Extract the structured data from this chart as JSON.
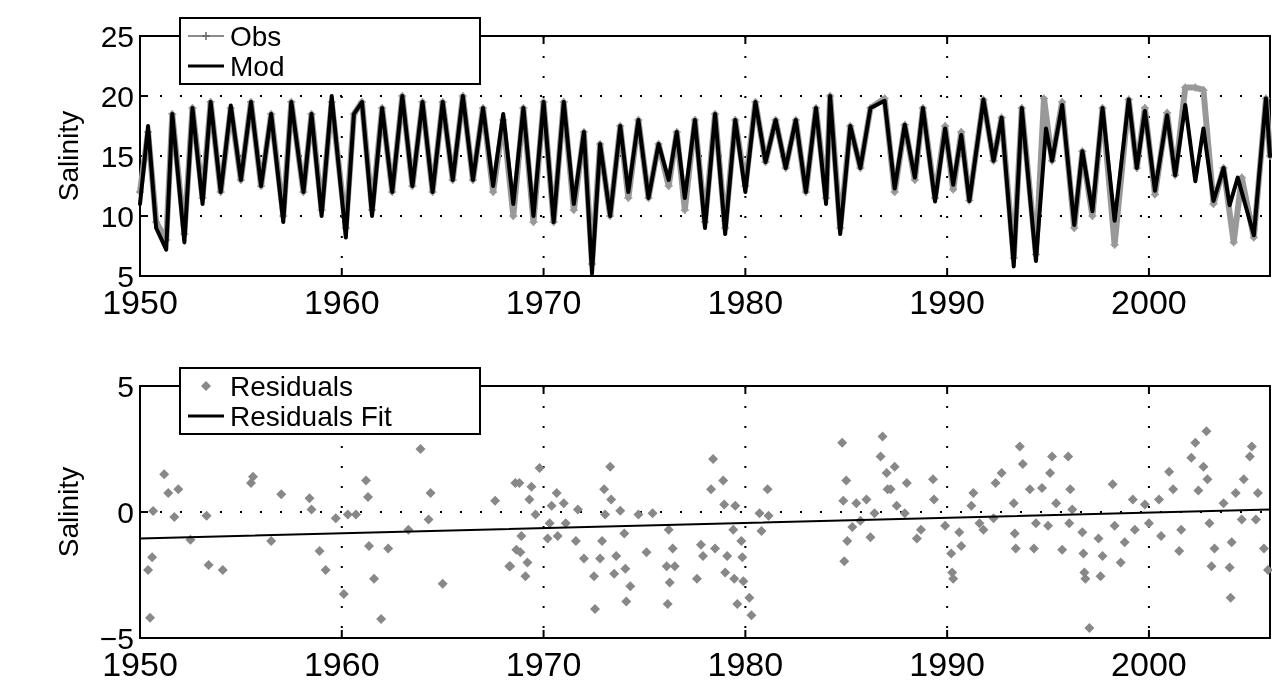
{
  "chart_data": [
    {
      "type": "line",
      "ylabel": "Salinity",
      "xlim": [
        1950,
        2006
      ],
      "xticks": [
        1950,
        1960,
        1970,
        1980,
        1990,
        2000
      ],
      "ylim": [
        5,
        25
      ],
      "yticks": [
        5,
        10,
        15,
        20,
        25
      ],
      "grid": true,
      "legend": "top left",
      "series": [
        {
          "name": "Obs",
          "color": "#999999",
          "marker": "cross",
          "x": [
            1950.0,
            1950.4,
            1950.8,
            1951.3,
            1951.6,
            1952.2,
            1952.6,
            1953.1,
            1953.5,
            1954.0,
            1954.5,
            1955.0,
            1955.5,
            1956.0,
            1956.5,
            1957.1,
            1957.5,
            1958.1,
            1958.5,
            1959.0,
            1959.5,
            1960.2,
            1960.6,
            1961.0,
            1961.5,
            1962.0,
            1962.5,
            1963.0,
            1963.5,
            1964.0,
            1964.5,
            1965.0,
            1965.5,
            1966.0,
            1966.5,
            1967.0,
            1967.5,
            1968.0,
            1968.5,
            1969.0,
            1969.5,
            1970.0,
            1970.5,
            1971.0,
            1971.5,
            1972.0,
            1972.4,
            1972.8,
            1973.3,
            1973.8,
            1974.2,
            1974.7,
            1975.2,
            1975.7,
            1976.2,
            1976.6,
            1977.0,
            1977.5,
            1978.0,
            1978.5,
            1979.0,
            1979.5,
            1980.0,
            1980.5,
            1981.0,
            1981.5,
            1982.0,
            1982.5,
            1983.0,
            1983.5,
            1984.0,
            1984.2,
            1984.7,
            1985.2,
            1985.7,
            1986.2,
            1986.9,
            1987.4,
            1987.9,
            1988.4,
            1988.8,
            1989.4,
            1989.9,
            1990.3,
            1990.7,
            1991.1,
            1991.8,
            1992.3,
            1992.7,
            1993.3,
            1993.7,
            1994.4,
            1994.8,
            1995.2,
            1995.7,
            1996.3,
            1996.7,
            1997.2,
            1997.7,
            1998.3,
            1999.0,
            1999.4,
            1999.8,
            2000.3,
            2000.9,
            2001.3,
            2001.8,
            2002.3,
            2002.7,
            2003.2,
            2003.7,
            2004.2,
            2004.6,
            2005.2,
            2005.8,
            2006.0
          ],
          "values": [
            12,
            17,
            9.5,
            8,
            18.5,
            8.5,
            19,
            11.5,
            19.5,
            12,
            19,
            13,
            19.5,
            12.5,
            18.5,
            10,
            19.5,
            12,
            18.5,
            10.5,
            19.5,
            9,
            18.5,
            19.5,
            10.5,
            19,
            12,
            20,
            12.5,
            19.5,
            12,
            19.5,
            13,
            20,
            13,
            19,
            12,
            18,
            10,
            19,
            9.5,
            19.5,
            9.5,
            19.5,
            10.5,
            17,
            6,
            16,
            10,
            17.5,
            11.5,
            18,
            11.5,
            16,
            12.5,
            17,
            10.5,
            18,
            9.5,
            18.5,
            9,
            18,
            12.5,
            19.5,
            14.5,
            18,
            14,
            18,
            12,
            19,
            11.5,
            20,
            9,
            17.5,
            14,
            19,
            19.8,
            12,
            17.6,
            13,
            19,
            11.5,
            17.5,
            12.2,
            17,
            11.3,
            19.7,
            14.6,
            18.2,
            6.5,
            19,
            6.8,
            19.8,
            14.6,
            19.5,
            9,
            15.4,
            10,
            19,
            7.6,
            19.7,
            14,
            19,
            11.8,
            18.6,
            13.4,
            20.7,
            20.7,
            20.5,
            11,
            14,
            7.8,
            13.2,
            8.2,
            19.8,
            15
          ]
        },
        {
          "name": "Mod",
          "color": "#000000",
          "x": [
            1950.0,
            1950.4,
            1950.8,
            1951.3,
            1951.6,
            1952.2,
            1952.6,
            1953.1,
            1953.5,
            1954.0,
            1954.5,
            1955.0,
            1955.5,
            1956.0,
            1956.5,
            1957.1,
            1957.5,
            1958.1,
            1958.5,
            1959.0,
            1959.5,
            1960.2,
            1960.6,
            1961.0,
            1961.5,
            1962.0,
            1962.5,
            1963.0,
            1963.5,
            1964.0,
            1964.5,
            1965.0,
            1965.5,
            1966.0,
            1966.5,
            1967.0,
            1967.5,
            1968.0,
            1968.5,
            1969.0,
            1969.5,
            1970.0,
            1970.5,
            1971.0,
            1971.5,
            1972.0,
            1972.4,
            1972.8,
            1973.3,
            1973.8,
            1974.2,
            1974.7,
            1975.2,
            1975.7,
            1976.2,
            1976.6,
            1977.0,
            1977.5,
            1978.0,
            1978.5,
            1979.0,
            1979.5,
            1980.0,
            1980.5,
            1981.0,
            1981.5,
            1982.0,
            1982.5,
            1983.0,
            1983.5,
            1984.0,
            1984.2,
            1984.7,
            1985.2,
            1985.7,
            1986.2,
            1986.9,
            1987.4,
            1987.9,
            1988.4,
            1988.8,
            1989.4,
            1989.9,
            1990.3,
            1990.7,
            1991.1,
            1991.8,
            1992.3,
            1992.7,
            1993.3,
            1993.7,
            1994.4,
            1994.9,
            1995.2,
            1995.7,
            1996.3,
            1996.7,
            1997.2,
            1997.7,
            1998.3,
            1999.0,
            1999.4,
            1999.8,
            2000.3,
            2000.9,
            2001.3,
            2001.8,
            2002.3,
            2002.7,
            2003.2,
            2003.7,
            2004.0,
            2004.4,
            2005.2,
            2005.8,
            2006.0
          ],
          "values": [
            11,
            17.5,
            9,
            7.2,
            18.5,
            7.8,
            19,
            11,
            19.5,
            12,
            19.2,
            13,
            19.5,
            12.5,
            18.5,
            9.5,
            19.5,
            12,
            18.5,
            10,
            20,
            8.2,
            18.5,
            19.5,
            10,
            19,
            12,
            20,
            12.5,
            19.5,
            12,
            19.5,
            13,
            20,
            13,
            19,
            12.5,
            18.5,
            11,
            19,
            10,
            19.5,
            9.5,
            19.5,
            11,
            17,
            5.2,
            16,
            10,
            17.5,
            12,
            18,
            11.5,
            16,
            13,
            17,
            11.5,
            18,
            9,
            18.5,
            8.5,
            18,
            12,
            19.5,
            14.5,
            18,
            14,
            18,
            12,
            19,
            11,
            20,
            8.5,
            17.5,
            14,
            19,
            19.6,
            12.3,
            17.6,
            13.2,
            19,
            11.2,
            17.3,
            12.6,
            16.75,
            11.25,
            19.7,
            14.6,
            18.2,
            5.8,
            19,
            6.25,
            17.3,
            14.6,
            19.25,
            9.25,
            15.4,
            10.4,
            19,
            9.6,
            19.7,
            14,
            18.75,
            12.1,
            18.4,
            13.4,
            19.25,
            12.9,
            17.3,
            11.25,
            14,
            10.9,
            13.2,
            8.4,
            19.8,
            15
          ]
        }
      ]
    },
    {
      "type": "scatter",
      "ylabel": "Salinity",
      "xlim": [
        1950,
        2006
      ],
      "xticks": [
        1950,
        1960,
        1970,
        1980,
        1990,
        2000
      ],
      "ylim": [
        -5,
        5
      ],
      "yticks": [
        {
          "value": -5,
          "label": "−5"
        },
        0,
        5
      ],
      "grid": true,
      "legend": "top left",
      "series": [
        {
          "name": "Residuals",
          "color": "#888888",
          "marker": "diamond",
          "x": [
            1950.65,
            1951.2,
            1951.4,
            1951.9,
            1951.7,
            1950.6,
            1950.4,
            1950.5,
            1953.3,
            1953.4,
            1954.1,
            1952.5,
            1955.6,
            1955.5,
            1956.5,
            1957.0,
            1958.4,
            1958.5,
            1958.9,
            1959.2,
            1960.1,
            1959.7,
            1960.3,
            1960.7,
            1961.2,
            1961.3,
            1961.35,
            1961.6,
            1961.95,
            1962.3,
            1963.9,
            1964.4,
            1964.3,
            1965.0,
            1963.3,
            1967.6,
            1968.6,
            1968.3,
            1968.65,
            1968.8,
            1969.4,
            1969.8,
            1969.3,
            1969.6,
            1968.9,
            1968.85,
            1969.2,
            1968.35,
            1969.1,
            1970.65,
            1970.4,
            1971.0,
            1971.7,
            1970.3,
            1971.1,
            1970.2,
            1970.7,
            1971.6,
            1972.0,
            1972.5,
            1972.55,
            1972.9,
            1972.8,
            1973.3,
            1973.0,
            1973.35,
            1973.05,
            1973.8,
            1974.0,
            1973.6,
            1973.5,
            1974.05,
            1974.3,
            1974.1,
            1974.7,
            1975.4,
            1975.1,
            1976.2,
            1976.4,
            1976.1,
            1976.5,
            1976.25,
            1976.15,
            1977.6,
            1977.8,
            1977.9,
            1978.4,
            1978.9,
            1978.3,
            1978.95,
            1979.5,
            1978.5,
            1979.4,
            1979.1,
            1979.8,
            1979.85,
            1979.0,
            1979.45,
            1979.9,
            1979.6,
            1980.2,
            1980.3,
            1981.1,
            1980.7,
            1981.15,
            1980.8,
            1984.8,
            1985.0,
            1984.85,
            1985.5,
            1986.0,
            1985.3,
            1985.05,
            1986.2,
            1984.9,
            1986.8,
            1986.7,
            1987.0,
            1987.05,
            1986.4,
            1985.7,
            1987.4,
            1987.2,
            1988.0,
            1987.5,
            1987.9,
            1988.7,
            1988.5,
            1989.3,
            1989.35,
            1989.9,
            1990.6,
            1990.7,
            1990.2,
            1990.25,
            1990.3,
            1991.3,
            1991.2,
            1991.6,
            1991.8,
            1992.4,
            1992.7,
            1992.3,
            1993.3,
            1993.35,
            1993.4,
            1993.6,
            1993.75,
            1994.1,
            1994.3,
            1994.4,
            1994.7,
            1995.2,
            1995.1,
            1995.4,
            1995.0,
            1995.7,
            1996.0,
            1996.1,
            1996.2,
            1996.05,
            1996.7,
            1996.75,
            1996.8,
            1996.85,
            1997.05,
            1997.6,
            1997.5,
            1997.7,
            1998.2,
            1998.3,
            1998.6,
            1998.8,
            1999.2,
            1999.3,
            1999.8,
            2000.0,
            2000.5,
            2000.6,
            2001.0,
            2001.2,
            2001.5,
            2001.6,
            2002.3,
            2002.1,
            2002.85,
            2002.7,
            2002.9,
            2002.45,
            2003.0,
            2003.1,
            2003.25,
            2004.0,
            2004.05,
            2004.1,
            2003.7,
            2004.3,
            2004.6,
            2004.7,
            2005.1,
            2005.0,
            2005.4,
            2005.3,
            2005.7,
            2005.9
          ],
          "values": [
            0.04,
            1.5,
            0.75,
            0.9,
            -0.2,
            -1.8,
            -2.3,
            -4.2,
            -0.15,
            -2.1,
            -2.3,
            -1.1,
            1.4,
            1.15,
            -1.15,
            0.7,
            0.55,
            0.1,
            -1.55,
            -2.3,
            -3.25,
            -0.25,
            -0.1,
            -0.1,
            1.25,
            0.6,
            -1.35,
            -2.65,
            -4.25,
            -1.45,
            2.5,
            0.75,
            -0.3,
            -2.85,
            -0.7,
            0.45,
            1.15,
            -2.15,
            -1.5,
            1.15,
            1.0,
            1.75,
            0.5,
            -0.1,
            -0.95,
            -1.6,
            -2.0,
            -2.15,
            -2.55,
            0.75,
            0.25,
            0.35,
            0.1,
            -0.45,
            -0.45,
            -1.05,
            -0.95,
            -1.15,
            -1.85,
            -2.55,
            -3.85,
            -1.15,
            -1.85,
            1.8,
            0.9,
            0.5,
            -0.1,
            0.05,
            -0.85,
            -1.75,
            -2.45,
            -2.25,
            -2.95,
            -3.55,
            -0.1,
            -0.05,
            -1.6,
            -0.7,
            -1.45,
            -2.15,
            -2.15,
            -2.8,
            -3.65,
            -2.65,
            -1.3,
            -1.75,
            2.1,
            1.25,
            0.9,
            0.3,
            0.25,
            -1.45,
            -0.7,
            -1.75,
            -1.15,
            -1.8,
            -2.4,
            -2.65,
            -2.75,
            -3.65,
            -3.4,
            -4.1,
            0.9,
            -0.05,
            -0.15,
            -0.75,
            2.75,
            1.25,
            0.45,
            0.35,
            0.5,
            -0.6,
            -1.15,
            -1.0,
            -1.95,
            3.0,
            2.2,
            1.55,
            0.9,
            -0.05,
            -0.35,
            1.8,
            0.9,
            1.15,
            0.25,
            -0.05,
            -0.7,
            -1.05,
            1.3,
            0.5,
            -0.55,
            -0.8,
            -1.35,
            -1.65,
            -2.4,
            -2.65,
            0.75,
            0.25,
            -0.45,
            -0.7,
            1.15,
            1.55,
            -0.25,
            0.35,
            -0.85,
            -1.45,
            2.6,
            1.9,
            0.9,
            -1.45,
            -0.45,
            0.95,
            2.2,
            1.55,
            0.35,
            -0.55,
            -1.5,
            2.2,
            0.9,
            0.1,
            -0.45,
            -0.8,
            -1.65,
            -2.4,
            -2.65,
            -4.6,
            -2.55,
            -1.05,
            -1.75,
            1.1,
            -0.55,
            -2.0,
            -1.2,
            0.5,
            -0.7,
            0.3,
            -0.45,
            0.5,
            -0.95,
            1.6,
            0.9,
            -1.55,
            -0.7,
            2.75,
            2.15,
            3.2,
            1.8,
            1.3,
            0.85,
            -0.45,
            -2.15,
            -1.45,
            -2.2,
            -3.4,
            -1.2,
            0.35,
            0.75,
            -0.3,
            1.3,
            2.6,
            2.2,
            0.75,
            -0.3,
            -1.45,
            -2.3
          ]
        },
        {
          "name": "Residuals Fit",
          "type": "line",
          "color": "#000000",
          "x": [
            1950,
            2006
          ],
          "values": [
            -1.05,
            0.1
          ]
        }
      ]
    }
  ]
}
